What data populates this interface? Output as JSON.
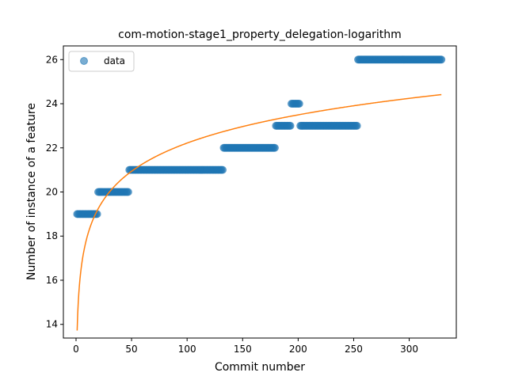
{
  "chart_data": {
    "type": "scatter",
    "title": "com-motion-stage1_property_delegation-logarithm",
    "xlabel": "Commit number",
    "ylabel": "Number of instance of a feature",
    "xlim": [
      -11.4,
      342.4
    ],
    "ylim": [
      13.38,
      26.62
    ],
    "xticks": [
      0,
      50,
      100,
      150,
      200,
      250,
      300
    ],
    "yticks": [
      14,
      16,
      18,
      20,
      22,
      24,
      26
    ],
    "grid": false,
    "legend": {
      "placement": "top-left",
      "entries": [
        "data"
      ]
    },
    "series": [
      {
        "name": "data",
        "kind": "scatter",
        "color": "#1f77b4",
        "opacity": 0.6,
        "segments": [
          {
            "x_start": 1,
            "x_end": 19,
            "y": 19
          },
          {
            "x_start": 20,
            "x_end": 47,
            "y": 20
          },
          {
            "x_start": 48,
            "x_end": 132,
            "y": 21
          },
          {
            "x_start": 133,
            "x_end": 179,
            "y": 22
          },
          {
            "x_start": 180,
            "x_end": 193,
            "y": 23
          },
          {
            "x_start": 194,
            "x_end": 201,
            "y": 24
          },
          {
            "x_start": 202,
            "x_end": 253,
            "y": 23
          },
          {
            "x_start": 254,
            "x_end": 329,
            "y": 26
          }
        ]
      },
      {
        "name": "",
        "kind": "line",
        "color": "#ff7f0e",
        "model": "y = 13.72 + 1.845 * ln(x)",
        "a": 13.72,
        "b": 1.845,
        "x_range": [
          1,
          329
        ]
      }
    ]
  }
}
